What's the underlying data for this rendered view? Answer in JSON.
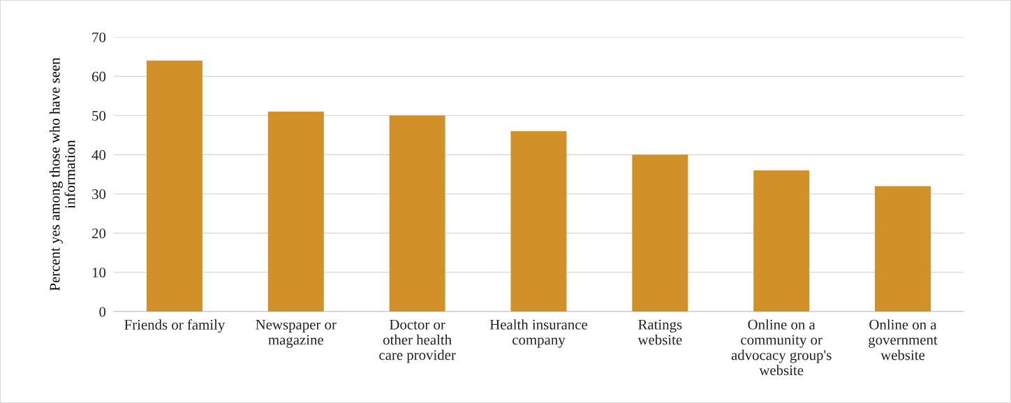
{
  "chart_data": {
    "type": "bar",
    "ylabel": "Percent yes among those who have seen\ninformation",
    "categories": [
      "Friends or family",
      "Newspaper or\nmagazine",
      "Doctor or\nother health\ncare provider",
      "Health insurance\ncompany",
      "Ratings\nwebsite",
      "Online on a\ncommunity or\nadvocacy group's\nwebsite",
      "Online on a\ngovernment\nwebsite"
    ],
    "values": [
      64,
      51,
      50,
      46,
      40,
      36,
      32
    ],
    "color": "#d19128",
    "ylim": [
      0,
      70
    ],
    "yticks": [
      0,
      10,
      20,
      30,
      40,
      50,
      60,
      70
    ],
    "grid": "y",
    "legend": false
  }
}
